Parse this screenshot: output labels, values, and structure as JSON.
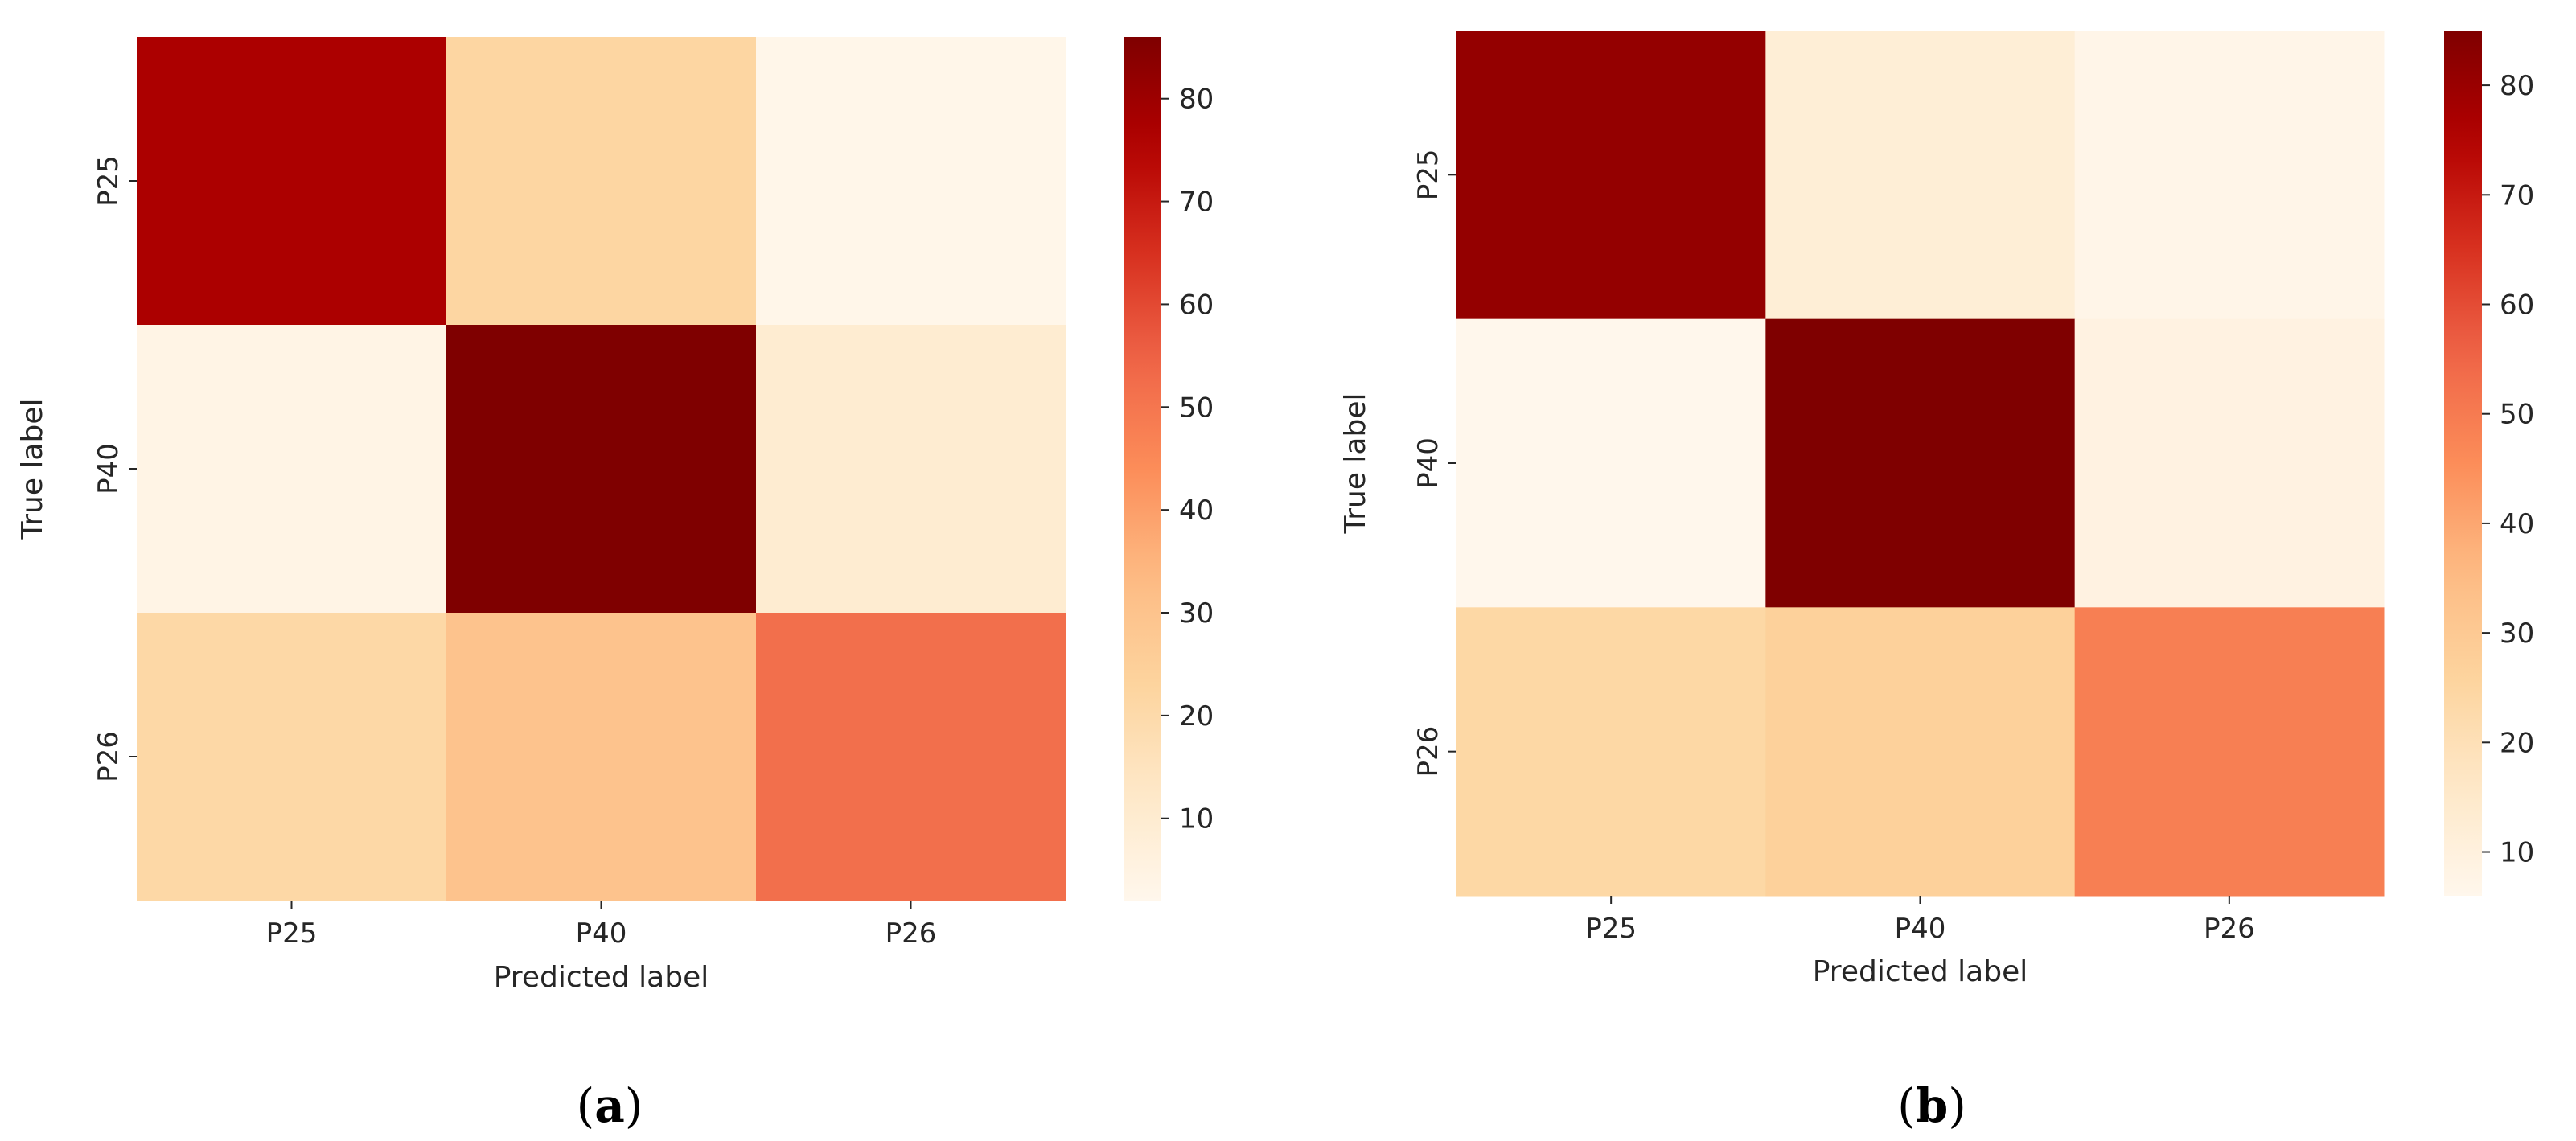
{
  "figure": {
    "panels": [
      "(a)",
      "(b)"
    ],
    "panel_letters": [
      "a",
      "b"
    ]
  },
  "chart_data": [
    {
      "type": "heatmap",
      "panel": "(a)",
      "xlabel": "Predicted label",
      "ylabel": "True label",
      "x_categories": [
        "P25",
        "P40",
        "P26"
      ],
      "y_categories": [
        "P25",
        "P40",
        "P26"
      ],
      "values": [
        [
          77,
          22,
          3
        ],
        [
          4,
          86,
          10
        ],
        [
          21,
          30,
          52
        ]
      ],
      "colorbar": {
        "min": 2,
        "max": 86,
        "ticks": [
          10,
          20,
          30,
          40,
          50,
          60,
          70,
          80
        ],
        "colormap": "OrRd"
      }
    },
    {
      "type": "heatmap",
      "panel": "(b)",
      "xlabel": "Predicted label",
      "ylabel": "True label",
      "x_categories": [
        "P25",
        "P40",
        "P26"
      ],
      "y_categories": [
        "P25",
        "P40",
        "P26"
      ],
      "values": [
        [
          81,
          12,
          7
        ],
        [
          6,
          85,
          9
        ],
        [
          24,
          27,
          49
        ]
      ],
      "colorbar": {
        "min": 6,
        "max": 85,
        "ticks": [
          10,
          20,
          30,
          40,
          50,
          60,
          70,
          80
        ],
        "colormap": "OrRd"
      }
    }
  ]
}
